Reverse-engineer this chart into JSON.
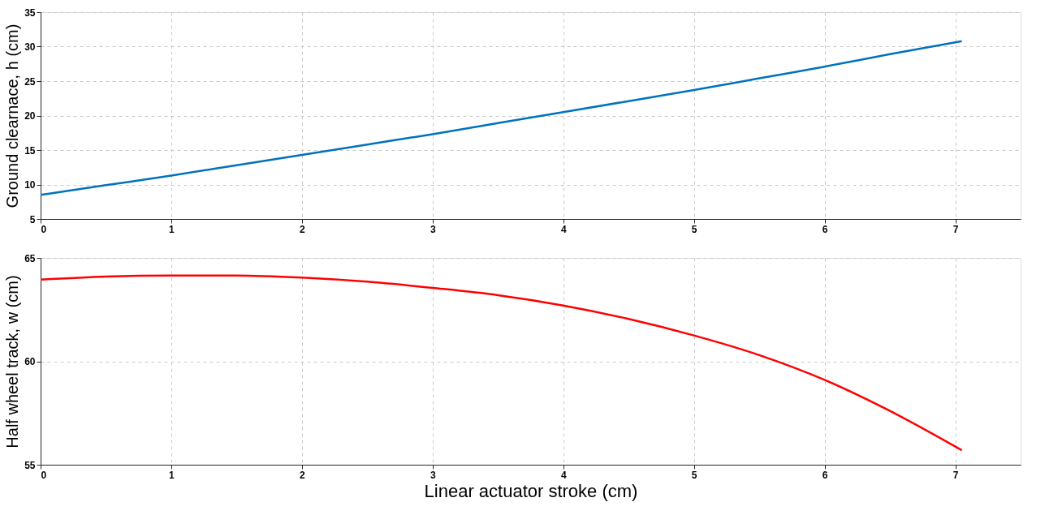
{
  "chart_data": [
    {
      "type": "line",
      "ylabel": "Ground clearnace, h (cm)",
      "x": [
        0,
        0.5,
        1,
        1.5,
        2,
        2.5,
        3,
        3.5,
        4,
        4.5,
        5,
        5.5,
        6,
        6.5,
        7.05
      ],
      "series": [
        {
          "color": "#0072bd",
          "values": [
            8.5,
            9.9,
            11.3,
            12.8,
            14.3,
            15.8,
            17.3,
            18.9,
            20.5,
            22.1,
            23.7,
            25.4,
            27.1,
            28.9,
            30.8
          ]
        }
      ],
      "xlim": [
        0,
        7.5
      ],
      "xticks": [
        0,
        1,
        2,
        3,
        4,
        5,
        6,
        7
      ],
      "ylim": [
        5,
        35
      ],
      "yticks": [
        5,
        10,
        15,
        20,
        25,
        30,
        35
      ],
      "grid": true,
      "marker": "none",
      "line_style": "solid"
    },
    {
      "type": "line",
      "xlabel": "Linear actuator stroke (cm)",
      "ylabel": "Half wheel track, w (cm)",
      "x": [
        0,
        0.5,
        1,
        1.5,
        2,
        2.5,
        3,
        3.5,
        4,
        4.5,
        5,
        5.5,
        6,
        6.5,
        7.05
      ],
      "series": [
        {
          "color": "#ff0000",
          "values": [
            63.95,
            64.1,
            64.15,
            64.15,
            64.05,
            63.85,
            63.55,
            63.2,
            62.7,
            62.05,
            61.25,
            60.3,
            59.1,
            57.6,
            55.7
          ]
        }
      ],
      "xlim": [
        0,
        7.5
      ],
      "xticks": [
        0,
        1,
        2,
        3,
        4,
        5,
        6,
        7
      ],
      "ylim": [
        55,
        65
      ],
      "yticks": [
        55,
        60,
        65
      ],
      "grid": true,
      "marker": "none",
      "line_style": "solid"
    }
  ]
}
